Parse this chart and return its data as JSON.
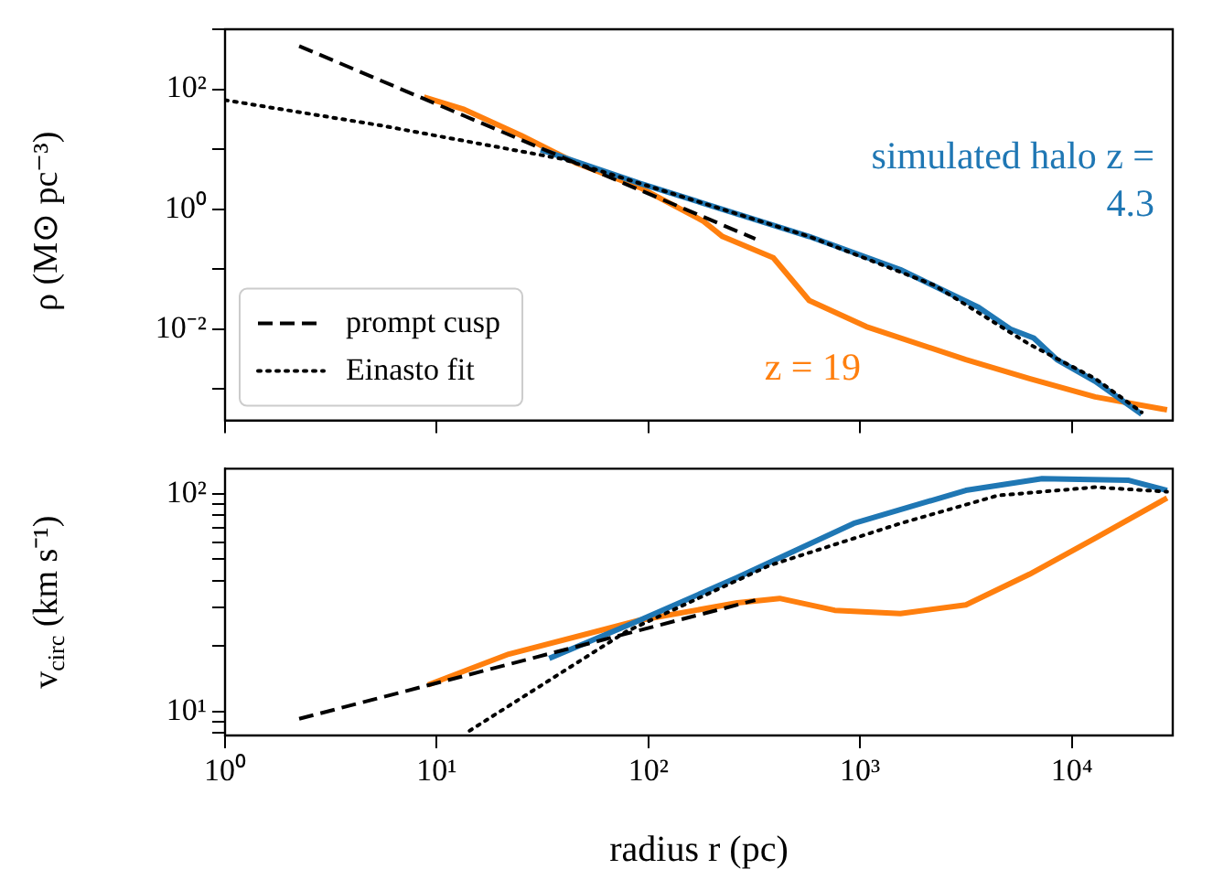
{
  "chart_data": [
    {
      "type": "line",
      "ylabel": "ρ (M⊙ pc⁻³)",
      "log": "xy",
      "marker": "none",
      "legend": "bottom left",
      "tick_labels": "y",
      "xlim": [
        1,
        30000
      ],
      "xticks": [
        {
          "value": 1,
          "label": null
        },
        {
          "value": 10,
          "label": null
        },
        {
          "value": 100,
          "label": null
        },
        {
          "value": 1000,
          "label": null
        },
        {
          "value": 10000,
          "label": null
        }
      ],
      "ylim": [
        0.0003,
        1000
      ],
      "yticks": [
        {
          "value": 0.001,
          "label": null
        },
        {
          "value": 0.01,
          "label": "10⁻²"
        },
        {
          "value": 0.1,
          "label": null
        },
        {
          "value": 1,
          "label": "10⁰"
        },
        {
          "value": 10,
          "label": null
        },
        {
          "value": 100,
          "label": "10²"
        },
        {
          "value": 1000,
          "label": null
        }
      ],
      "series": [
        {
          "name": "prompt cusp",
          "color": "#000000",
          "line_style": "dashed",
          "x": [
            2.24,
            320
          ],
          "values": [
            525,
            0.32
          ]
        },
        {
          "name": "Einasto fit",
          "color": "#000000",
          "line_style": "dotted",
          "x": [
            1,
            5.4,
            39,
            575,
            2240,
            6300,
            12900,
            21400
          ],
          "values": [
            66,
            25,
            6.9,
            0.35,
            0.054,
            0.0056,
            0.0015,
            0.00041
          ]
        },
        {
          "name": "simulated halo z = 4.3",
          "color": "#1f77b4",
          "x": [
            31,
            91,
            575,
            1550,
            3630,
            5130,
            6610,
            8510,
            12900,
            21400
          ],
          "values": [
            9.8,
            2.7,
            0.35,
            0.098,
            0.023,
            0.01,
            0.0071,
            0.0031,
            0.00135,
            0.00038
          ]
        },
        {
          "name": "z = 19",
          "color": "#ff7f0e",
          "x": [
            8.7,
            13.5,
            25,
            45,
            91,
            182,
            224,
            389,
            575,
            1070,
            3160,
            6310,
            12900,
            28200
          ],
          "values": [
            74,
            46,
            17,
            6,
            2.3,
            0.63,
            0.35,
            0.155,
            0.03,
            0.011,
            0.0031,
            0.0015,
            0.00074,
            0.00045
          ]
        }
      ]
    },
    {
      "type": "line",
      "xlabel": "radius r (pc)",
      "ylabel": "v$_{circ}$ (km s⁻¹)",
      "log": "xy",
      "marker": "none",
      "xlim": [
        1,
        30000
      ],
      "xticks": [
        {
          "value": 1,
          "label": "10⁰"
        },
        {
          "value": 10,
          "label": "10¹"
        },
        {
          "value": 100,
          "label": "10²"
        },
        {
          "value": 1000,
          "label": "10³"
        },
        {
          "value": 10000,
          "label": "10⁴"
        }
      ],
      "ylim": [
        7.8,
        130
      ],
      "yticks": [
        {
          "value": 8,
          "label": null
        },
        {
          "value": 9,
          "label": null
        },
        {
          "value": 10,
          "label": "10¹"
        },
        {
          "value": 20,
          "label": null
        },
        {
          "value": 30,
          "label": null
        },
        {
          "value": 40,
          "label": null
        },
        {
          "value": 50,
          "label": null
        },
        {
          "value": 60,
          "label": null
        },
        {
          "value": 70,
          "label": null
        },
        {
          "value": 80,
          "label": null
        },
        {
          "value": 90,
          "label": null
        },
        {
          "value": 100,
          "label": "10²"
        }
      ],
      "series": [
        {
          "color": "#000000",
          "line_style": "dashed",
          "x": [
            2.24,
            320
          ],
          "values": [
            9.3,
            32.5
          ]
        },
        {
          "color": "#000000",
          "line_style": "dotted",
          "x": [
            14.3,
            79,
            372,
            1550,
            4470,
            12900,
            28200
          ],
          "values": [
            8.2,
            23.4,
            46.8,
            73,
            98,
            107,
            102
          ]
        },
        {
          "color": "#1f77b4",
          "x": [
            34,
            91,
            263,
            933,
            3160,
            7240,
            18600,
            28200
          ],
          "values": [
            17.6,
            26.3,
            41.3,
            73,
            103.5,
            117,
            115,
            103.5
          ]
        },
        {
          "color": "#ff7f0e",
          "x": [
            9.1,
            21.9,
            91,
            263,
            417,
            759,
            1550,
            3160,
            6310,
            12900,
            28200
          ],
          "values": [
            13.3,
            18.4,
            26.3,
            31.6,
            33.1,
            29.2,
            28.2,
            30.9,
            42.7,
            62.4,
            95.5
          ]
        }
      ]
    }
  ]
}
